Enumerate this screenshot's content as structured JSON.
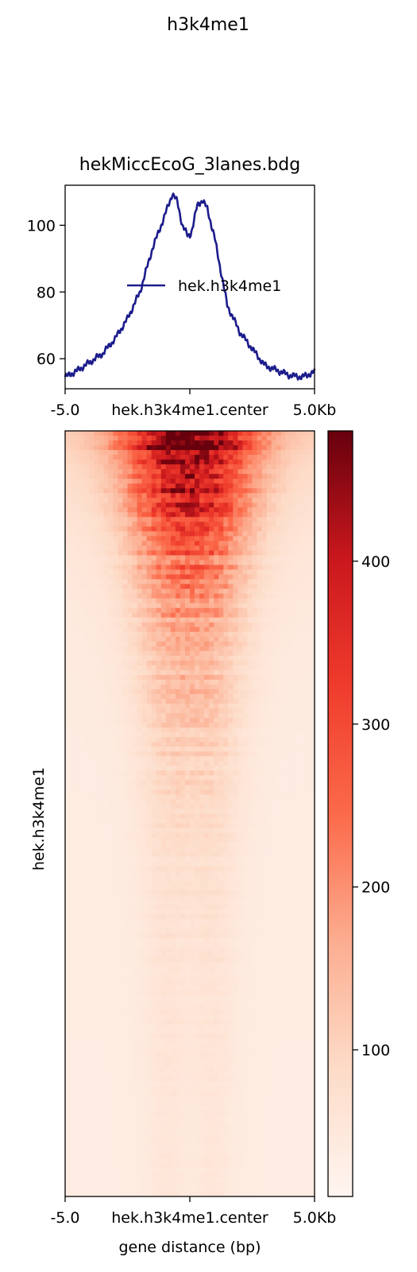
{
  "figure_title": "h3k4me1",
  "colors": {
    "profile_line": "#1c1c8c",
    "heat_low": "#fff5f0",
    "heat_mid": "#f4513a",
    "heat_high": "#67000d"
  },
  "chart_data": [
    {
      "type": "line",
      "title": "hekMiccEcoG_3lanes.bdg",
      "xlabel": "",
      "ylabel": "",
      "x_tick_labels": [
        "-5.0",
        "hek.h3k4me1.center",
        "5.0Kb"
      ],
      "x_range_kb": [
        -5.0,
        5.0
      ],
      "ylim": [
        51,
        112
      ],
      "y_ticks": [
        60,
        80,
        100
      ],
      "legend_position": "center",
      "series": [
        {
          "name": "hek.h3k4me1",
          "x": [
            -5.0,
            -4.5,
            -4.0,
            -3.5,
            -3.0,
            -2.5,
            -2.0,
            -1.5,
            -1.0,
            -0.7,
            -0.5,
            -0.3,
            -0.1,
            0.0,
            0.1,
            0.3,
            0.5,
            0.7,
            1.0,
            1.3,
            1.5,
            2.0,
            2.5,
            3.0,
            3.5,
            4.0,
            4.5,
            5.0
          ],
          "values": [
            54.5,
            56.5,
            59,
            61.5,
            66,
            72,
            80,
            93,
            103,
            109.5,
            107,
            100,
            97,
            97,
            99,
            106,
            107.5,
            105,
            96,
            84,
            76,
            68,
            63,
            58,
            56.5,
            55,
            54.5,
            56
          ]
        }
      ]
    },
    {
      "type": "heatmap",
      "ylabel": "hek.h3k4me1",
      "xlabel": "gene distance (bp)",
      "x_tick_labels": [
        "-5.0",
        "hek.h3k4me1.center",
        "5.0Kb"
      ],
      "x_range_kb": [
        -5.0,
        5.0
      ],
      "colorbar": {
        "range": [
          10,
          480
        ],
        "ticks": [
          100,
          200,
          300,
          400
        ],
        "colormap": "Reds"
      }
    }
  ]
}
